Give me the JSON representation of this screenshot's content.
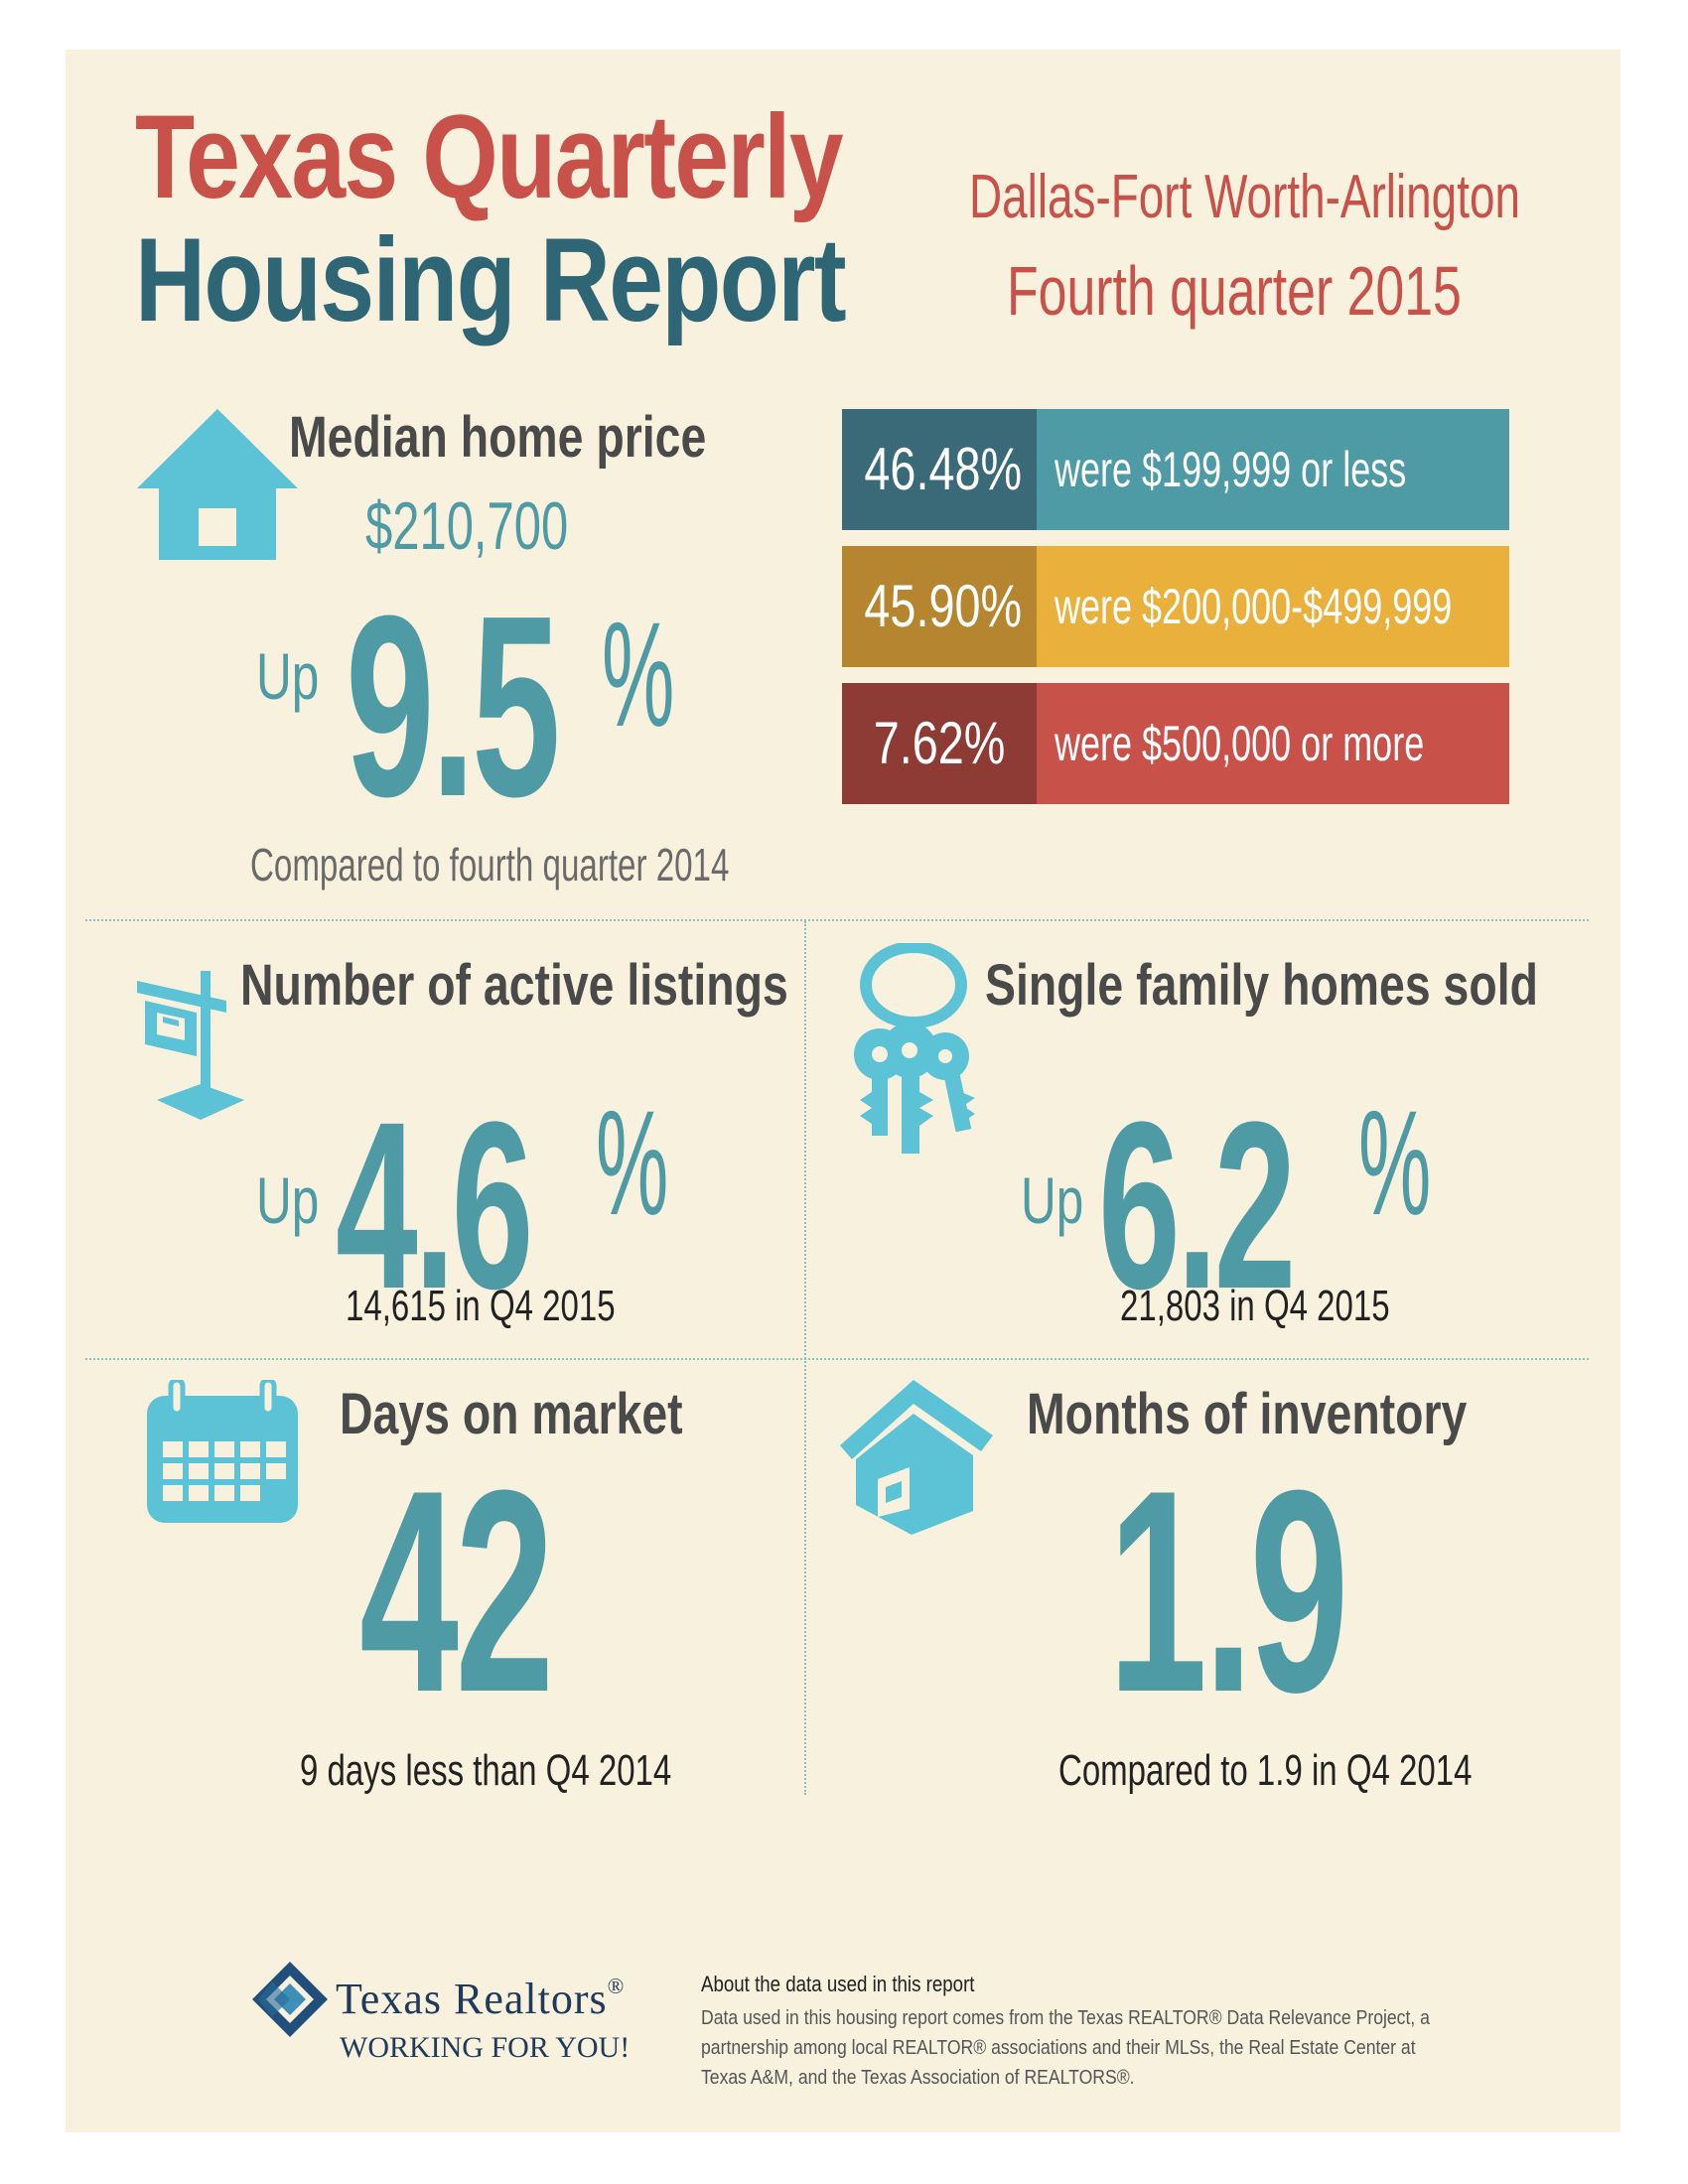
{
  "header": {
    "title_line1": "Texas Quarterly",
    "title_line2": "Housing Report",
    "region": "Dallas-Fort Worth-Arlington",
    "period": "Fourth quarter 2015"
  },
  "median_price": {
    "heading": "Median home price",
    "value": "$210,700",
    "direction": "Up",
    "change": "9.5",
    "percent_sign": "%",
    "caption": "Compared to fourth quarter 2014",
    "icon": "house-icon"
  },
  "price_breakdown": [
    {
      "percent": "46.48%",
      "label": "were $199,999 or less",
      "dark_color": "#3a6a78",
      "light_color": "#4e9aa5"
    },
    {
      "percent": "45.90%",
      "label": "were $200,000-$499,999",
      "dark_color": "#b5862f",
      "light_color": "#e9b13c"
    },
    {
      "percent": "7.62%",
      "label": "were $500,000 or more",
      "dark_color": "#8e3a35",
      "light_color": "#c8514a"
    }
  ],
  "active_listings": {
    "heading": "Number of active listings",
    "direction": "Up",
    "change": "4.6",
    "percent_sign": "%",
    "caption": "14,615 in Q4 2015",
    "icon": "for-sale-sign-icon"
  },
  "homes_sold": {
    "heading": "Single family homes sold",
    "direction": "Up",
    "change": "6.2",
    "percent_sign": "%",
    "caption": "21,803 in Q4 2015",
    "icon": "keys-icon"
  },
  "days_on_market": {
    "heading": "Days on market",
    "value": "42",
    "caption": "9 days less than Q4 2014",
    "icon": "calendar-icon"
  },
  "months_inventory": {
    "heading": "Months of inventory",
    "value": "1.9",
    "caption": "Compared to 1.9 in Q4 2014",
    "icon": "home-icon"
  },
  "footer": {
    "logo_name": "Texas Realtors",
    "logo_mark": "®",
    "logo_tagline": "WORKING FOR YOU!",
    "about_title": "About the data used in this report",
    "about_body": "Data used in this housing report comes from the Texas REALTOR® Data Relevance Project, a partnership among local REALTOR® associations and their MLSs, the Real Estate Center at Texas A&M, and the Texas Association of REALTORS®."
  },
  "colors": {
    "background": "#f8f1de",
    "teal": "#4e9aa5",
    "dark_teal": "#2e6675",
    "red": "#c8514a",
    "icon_blue": "#5bc3d5"
  }
}
